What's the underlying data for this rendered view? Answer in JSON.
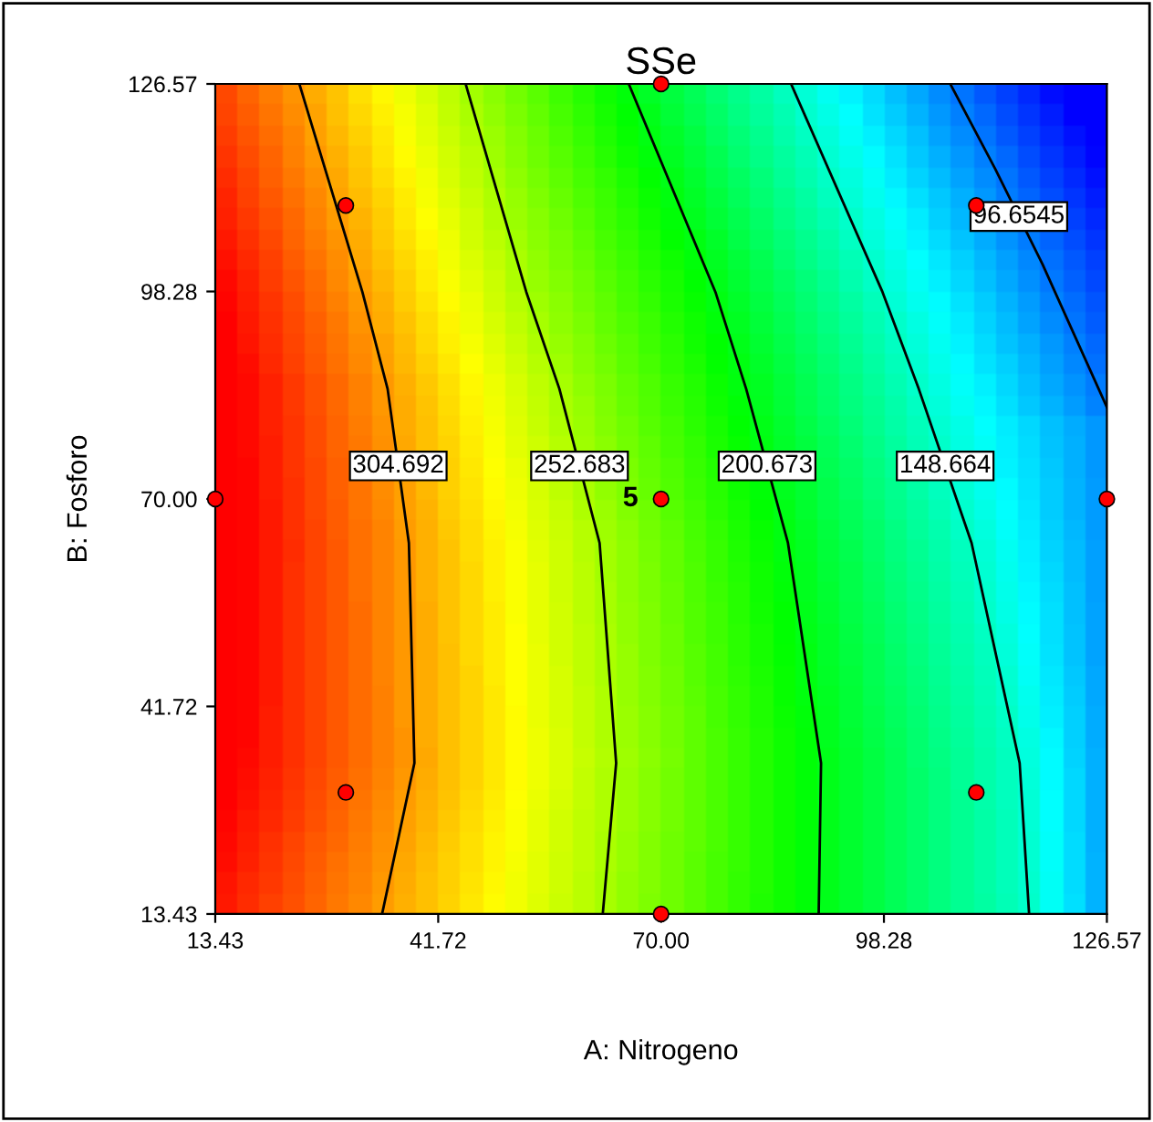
{
  "chart_data": {
    "type": "line",
    "title": "SSe",
    "xlabel": "A: Nitrogeno",
    "ylabel": "B: Fosforo",
    "xlim": [
      13.43,
      126.57
    ],
    "ylim": [
      13.43,
      126.57
    ],
    "xticks": [
      13.43,
      41.72,
      {
        "value": 70,
        "label": "70.00"
      },
      98.28,
      126.57
    ],
    "yticks": [
      13.43,
      41.72,
      {
        "value": 70,
        "label": "70.00"
      },
      98.28,
      126.57
    ],
    "grid": false,
    "legend": false,
    "series": [
      {
        "name": "304.692",
        "color": "#000000",
        "line_style": "solid",
        "marker": "none",
        "x": [
          24.1,
          32.1,
          35.3,
          38.0,
          38.7,
          34.6
        ],
        "values": [
          126.57,
          98.2,
          85,
          64,
          34,
          13.43
        ]
      },
      {
        "name": "252.683",
        "color": "#000000",
        "line_style": "solid",
        "marker": "none",
        "x": [
          45.2,
          52.9,
          57.1,
          62.2,
          64.3,
          62.6
        ],
        "values": [
          126.57,
          98.2,
          85,
          64,
          34,
          13.43
        ]
      },
      {
        "name": "200.673",
        "color": "#000000",
        "line_style": "solid",
        "marker": "none",
        "x": [
          65.9,
          76.9,
          80.8,
          86.1,
          90.3,
          90.0
        ],
        "values": [
          126.57,
          98.2,
          85,
          64,
          34,
          13.43
        ]
      },
      {
        "name": "148.664",
        "color": "#000000",
        "line_style": "solid",
        "marker": "none",
        "x": [
          86.5,
          98.1,
          102.7,
          109.4,
          115.5,
          116.7
        ],
        "values": [
          126.57,
          98.2,
          85,
          64,
          34,
          13.43
        ]
      },
      {
        "name": "96.6545",
        "color": "#000000",
        "line_style": "solid",
        "marker": "none",
        "x": [
          106.7,
          112.4,
          118.4,
          126.57
        ],
        "values": [
          126.57,
          115,
          102,
          82.5
        ]
      },
      {
        "type": "scatter",
        "color": "#ff0000",
        "marker": "circle",
        "x": [
          13.43,
          126.57,
          70,
          70,
          70,
          30,
          30,
          110,
          110
        ],
        "values": [
          70,
          70,
          13.43,
          126.57,
          70,
          110,
          30,
          110,
          30
        ]
      }
    ],
    "annotations": [
      {
        "text": "5",
        "x": 70,
        "y": 70
      }
    ]
  }
}
